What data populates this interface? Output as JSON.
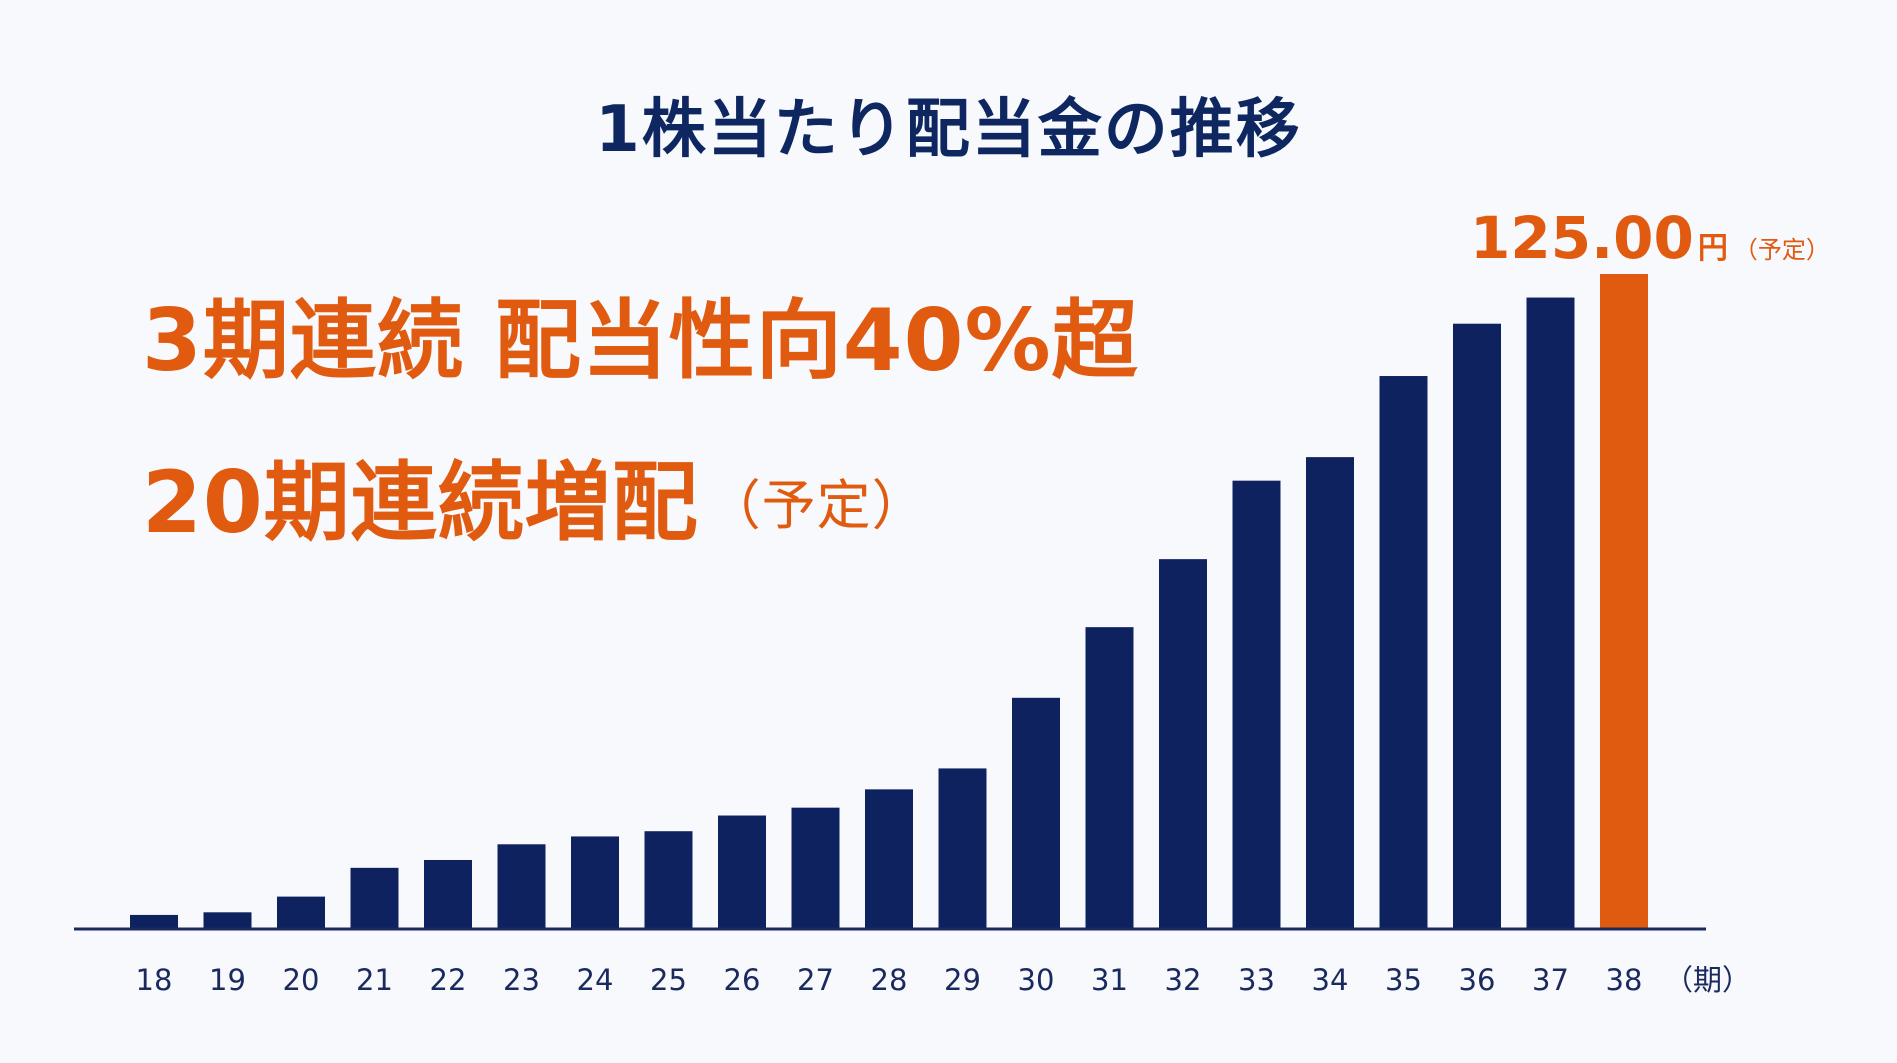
{
  "title": "1株当たり配当金の推移",
  "headline": {
    "line1": "3期連続  配当性向40%超",
    "line2_main": "20期連続増配",
    "line2_note": "（予定）"
  },
  "chart_data": {
    "type": "bar",
    "title": "1株当たり配当金の推移",
    "categories": [
      "18",
      "19",
      "20",
      "21",
      "22",
      "23",
      "24",
      "25",
      "26",
      "27",
      "28",
      "29",
      "30",
      "31",
      "32",
      "33",
      "34",
      "35",
      "36",
      "37",
      "38"
    ],
    "values": [
      2.5,
      3,
      6,
      11.5,
      13,
      16,
      17.5,
      18.5,
      21.5,
      23,
      26.5,
      30.5,
      44,
      57.5,
      70.5,
      85.5,
      90,
      105.5,
      115.5,
      120.5,
      125
    ],
    "x_unit": "（期）",
    "highlight": {
      "category": "38",
      "value_label": "125.00",
      "unit": "円",
      "note": "（予定）",
      "color": "#e05a10"
    },
    "bar_color": "#0f2260",
    "ylim": [
      0,
      125
    ],
    "grid": false,
    "legend": "none"
  }
}
